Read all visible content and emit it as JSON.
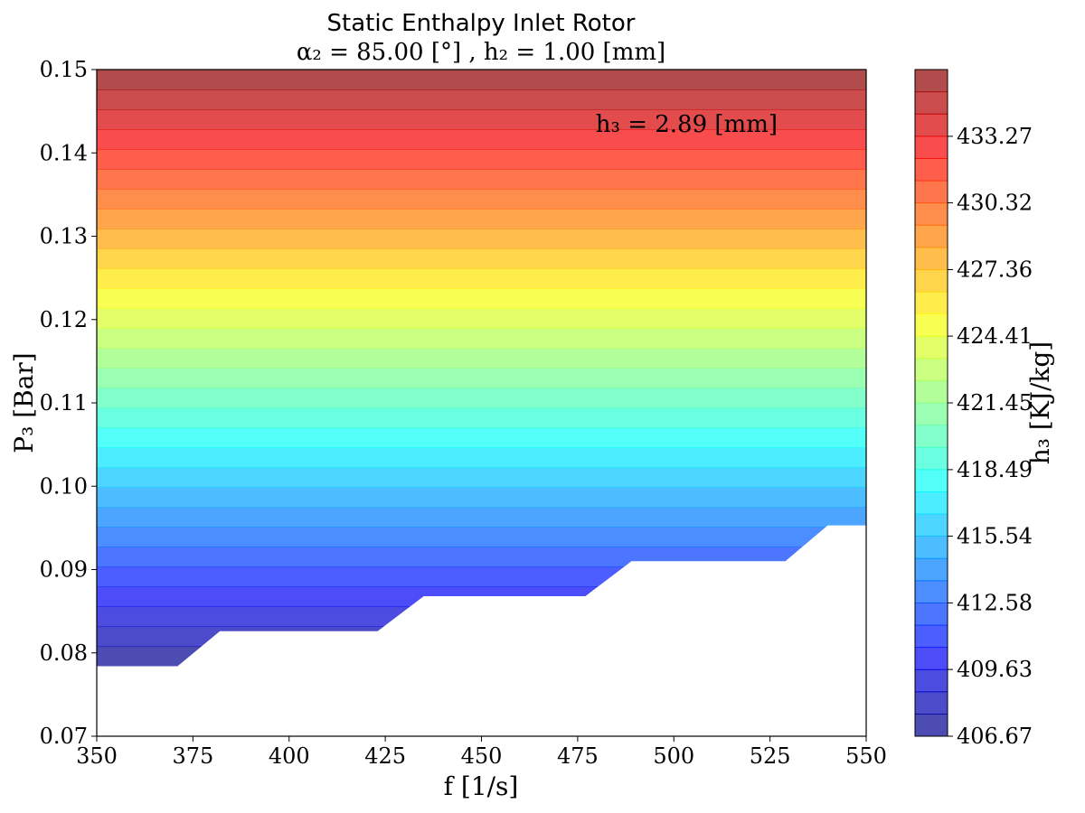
{
  "chart_data": {
    "type": "heatmap",
    "title": "Static Enthalpy Inlet Rotor",
    "subtitle": "α₂ = 85.00 [°] , h₂ = 1.00 [mm]",
    "annotation": "h₃ = 2.89 [mm]",
    "xlabel": "f [1/s]",
    "ylabel": "P₃ [Bar]",
    "colorbar_label": "h₃ [KJ/kg]",
    "xlim": [
      350,
      550
    ],
    "ylim": [
      0.07,
      0.15
    ],
    "x_ticks": [
      "350",
      "375",
      "400",
      "425",
      "450",
      "475",
      "500",
      "525",
      "550"
    ],
    "y_ticks": [
      "0.07",
      "0.08",
      "0.09",
      "0.10",
      "0.11",
      "0.12",
      "0.13",
      "0.14",
      "0.15"
    ],
    "colorbar_range": [
      406.67,
      436.23
    ],
    "colorbar_ticks": [
      "406.67",
      "409.63",
      "412.58",
      "415.54",
      "418.49",
      "421.45",
      "424.41",
      "427.36",
      "430.32",
      "433.27"
    ],
    "colorbar_tick_values": [
      406.67,
      409.63,
      412.58,
      415.54,
      418.49,
      421.45,
      424.41,
      427.36,
      430.32,
      433.27
    ],
    "levels": 30,
    "colormap": "jet",
    "alpha": 0.7,
    "valid_region_lower_boundary": {
      "f": [
        350,
        371,
        382,
        423,
        435,
        477,
        489,
        529,
        540,
        550
      ],
      "P3": [
        0.0784,
        0.0784,
        0.0826,
        0.0826,
        0.0868,
        0.0868,
        0.091,
        0.091,
        0.0953,
        0.0953
      ]
    },
    "h3_at_P3": {
      "P3": [
        0.0784,
        0.15
      ],
      "h3": [
        406.67,
        436.23
      ]
    }
  }
}
